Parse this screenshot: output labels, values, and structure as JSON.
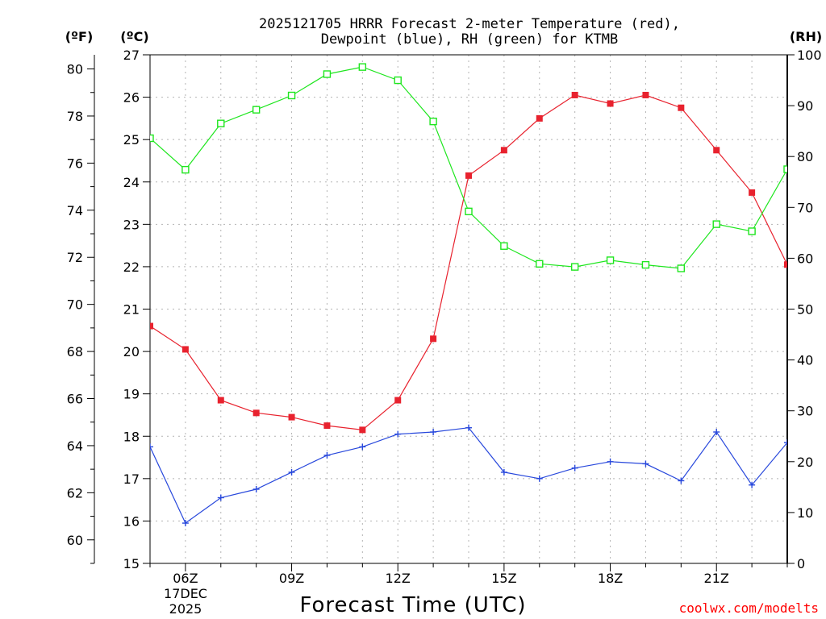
{
  "chart_data": {
    "type": "line",
    "title": [
      "2025121705 HRRR Forecast 2-meter Temperature (red),",
      "Dewpoint (blue), RH (green) for KTMB"
    ],
    "xlabel": "Forecast Time (UTC)",
    "x_ticks": [
      "06Z",
      "09Z",
      "12Z",
      "15Z",
      "18Z",
      "21Z"
    ],
    "x_date_label": [
      "17DEC",
      "2025"
    ],
    "x_hours": [
      5,
      6,
      7,
      8,
      9,
      10,
      11,
      12,
      13,
      14,
      15,
      16,
      17,
      18,
      19,
      20,
      21,
      22,
      23
    ],
    "xlim": [
      5,
      23
    ],
    "left_axis_f": {
      "label": "(ºF)",
      "ylim": [
        59,
        81
      ],
      "ticks": [
        60,
        62,
        64,
        66,
        68,
        70,
        72,
        74,
        76,
        78,
        80
      ]
    },
    "left_axis_c": {
      "label": "(ºC)",
      "ylim": [
        15,
        27
      ],
      "ticks": [
        15,
        16,
        17,
        18,
        19,
        20,
        21,
        22,
        23,
        24,
        25,
        26,
        27
      ]
    },
    "right_axis_rh": {
      "label": "(RH)",
      "ylim": [
        0,
        100
      ],
      "ticks": [
        0,
        10,
        20,
        30,
        40,
        50,
        60,
        70,
        80,
        90,
        100
      ]
    },
    "series": [
      {
        "name": "Temperature",
        "units": "C",
        "color": "#e8222e",
        "marker": "filled-square",
        "values": [
          20.6,
          20.05,
          18.85,
          18.55,
          18.45,
          18.25,
          18.15,
          18.85,
          20.3,
          24.15,
          24.75,
          25.5,
          26.05,
          25.85,
          26.05,
          25.75,
          24.75,
          23.75,
          22.05
        ]
      },
      {
        "name": "Dewpoint",
        "units": "C",
        "color": "#2848dc",
        "marker": "plus",
        "values": [
          17.75,
          15.95,
          16.55,
          16.75,
          17.15,
          17.55,
          17.75,
          18.05,
          18.1,
          18.2,
          17.15,
          17.0,
          17.25,
          17.4,
          17.35,
          16.95,
          18.1,
          16.85,
          17.85
        ]
      },
      {
        "name": "RH",
        "units": "%",
        "color": "#1ee61e",
        "marker": "open-square",
        "values": [
          83.6,
          77.4,
          86.5,
          89.2,
          92.0,
          96.2,
          97.6,
          95.0,
          86.9,
          69.2,
          62.4,
          58.9,
          58.3,
          59.6,
          58.7,
          58.0,
          66.7,
          65.3,
          77.5
        ]
      }
    ]
  },
  "credit": "coolwx.com/modelts"
}
